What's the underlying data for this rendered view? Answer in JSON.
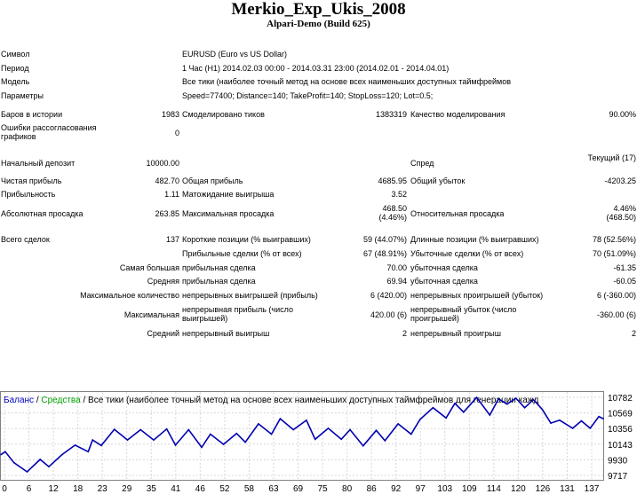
{
  "report": {
    "title": "Merkio_Exp_Ukis_2008",
    "subtitle": "Alpari-Demo (Build 625)"
  },
  "info": {
    "symbol_label": "Символ",
    "symbol_value": "EURUSD (Euro vs US Dollar)",
    "period_label": "Период",
    "period_value": "1 Час (H1) 2014.02.03 00:00 - 2014.03.31 23:00 (2014.02.01 - 2014.04.01)",
    "model_label": "Модель",
    "model_value": "Все тики (наиболее точный метод на основе всех наименьших доступных таймфреймов",
    "params_label": "Параметры",
    "params_value": "Speed=77400; Distance=140; TakeProfit=140; StopLoss=120; Lot=0.5;"
  },
  "stats": {
    "bars_label": "Баров в истории",
    "bars_value": "1983",
    "ticks_label": "Смоделировано тиков",
    "ticks_value": "1383319",
    "quality_label": "Качество моделирования",
    "quality_value": "90.00%",
    "errors_label": "Ошибки рассогласования графиков",
    "errors_value": "0",
    "deposit_label": "Начальный депозит",
    "deposit_value": "10000.00",
    "spread_label": "Спред",
    "spread_value": "Текущий (17)",
    "net_label": "Чистая прибыль",
    "net_value": "482.70",
    "gross_profit_label": "Общая прибыль",
    "gross_profit_value": "4685.95",
    "gross_loss_label": "Общий убыток",
    "gross_loss_value": "-4203.25",
    "pf_label": "Прибыльность",
    "pf_value": "1.11",
    "expected_label": "Матожидание выигрыша",
    "expected_value": "3.52",
    "abs_dd_label": "Абсолютная просадка",
    "abs_dd_value": "263.85",
    "max_dd_label": "Максимальная просадка",
    "max_dd_value": "468.50 (4.46%)",
    "rel_dd_label": "Относительная просадка",
    "rel_dd_value": "4.46% (468.50)",
    "total_label": "Всего сделок",
    "total_value": "137",
    "short_label": "Короткие позиции (% выигравших)",
    "short_value": "59 (44.07%)",
    "long_label": "Длинные позиции (% выигравших)",
    "long_value": "78 (52.56%)",
    "profit_trades_label": "Прибыльные сделки (% от всех)",
    "profit_trades_value": "67 (48.91%)",
    "loss_trades_label": "Убыточные сделки (% от всех)",
    "loss_trades_value": "70 (51.09%)",
    "largest_label": "Самая большая",
    "largest_profit_label": "прибыльная сделка",
    "largest_profit_value": "70.00",
    "largest_loss_label": "убыточная сделка",
    "largest_loss_value": "-61.35",
    "average_label": "Средняя",
    "average_profit_label": "прибыльная сделка",
    "average_profit_value": "69.94",
    "average_loss_label": "убыточная сделка",
    "average_loss_value": "-60.05",
    "max_count_label": "Максимальное количество",
    "max_consec_wins_label": "непрерывных выигрышей (прибыль)",
    "max_consec_wins_value": "6 (420.00)",
    "max_consec_losses_label": "непрерывных проигрышей (убыток)",
    "max_consec_losses_value": "6 (-360.00)",
    "maximal_label": "Максимальная",
    "max_consec_profit_label": "непрерывная прибыль (число выигрышей)",
    "max_consec_profit_value": "420.00 (6)",
    "max_consec_loss_label": "непрерывный убыток (число проигрышей)",
    "max_consec_loss_value": "-360.00 (6)",
    "avg_label": "Средний",
    "avg_consec_wins_label": "непрерывный выигрыш",
    "avg_consec_wins_value": "2",
    "avg_consec_losses_label": "непрерывный проигрыш",
    "avg_consec_losses_value": "2"
  },
  "chart_data": {
    "type": "line",
    "legend": {
      "balance": "Баланс",
      "sep1": " / ",
      "equity": "Средства",
      "sep2": " / ",
      "desc": "Все тики (наиболее точный метод на основе всех наименьших доступных таймфреймов для генерации кажд"
    },
    "colors": {
      "balance_legend": "#0000c0",
      "equity_legend": "#00a000",
      "line": "#0000b0",
      "text": "#000000"
    },
    "ylim": [
      9717,
      10782
    ],
    "y_ticks": [
      "10782",
      "10569",
      "10356",
      "10143",
      "9930",
      "9717"
    ],
    "x_ticks": [
      "0",
      "6",
      "12",
      "18",
      "23",
      "29",
      "35",
      "41",
      "46",
      "52",
      "58",
      "63",
      "69",
      "75",
      "80",
      "86",
      "92",
      "97",
      "103",
      "109",
      "114",
      "120",
      "126",
      "131",
      "137"
    ],
    "xlim": [
      0,
      138
    ],
    "series": [
      {
        "name": "Баланс",
        "x": [
          0,
          1,
          3,
          6,
          9,
          11,
          14,
          17,
          20,
          21,
          23,
          26,
          29,
          32,
          35,
          38,
          40,
          43,
          46,
          48,
          51,
          54,
          56,
          59,
          62,
          64,
          67,
          70,
          72,
          75,
          78,
          80,
          83,
          86,
          88,
          91,
          94,
          96,
          99,
          102,
          104,
          106,
          109,
          112,
          114,
          116,
          118,
          120,
          122,
          124,
          126,
          128,
          131,
          133,
          135,
          137,
          138
        ],
        "y": [
          10000,
          10040,
          9890,
          9765,
          9935,
          9835,
          10000,
          10130,
          10040,
          10200,
          10125,
          10345,
          10200,
          10340,
          10200,
          10350,
          10130,
          10340,
          10100,
          10280,
          10140,
          10290,
          10170,
          10420,
          10280,
          10490,
          10340,
          10470,
          10210,
          10360,
          10210,
          10340,
          10120,
          10330,
          10190,
          10420,
          10280,
          10480,
          10640,
          10500,
          10700,
          10580,
          10780,
          10540,
          10760,
          10690,
          10770,
          10640,
          10750,
          10620,
          10430,
          10470,
          10360,
          10460,
          10360,
          10520,
          10490
        ]
      }
    ]
  }
}
